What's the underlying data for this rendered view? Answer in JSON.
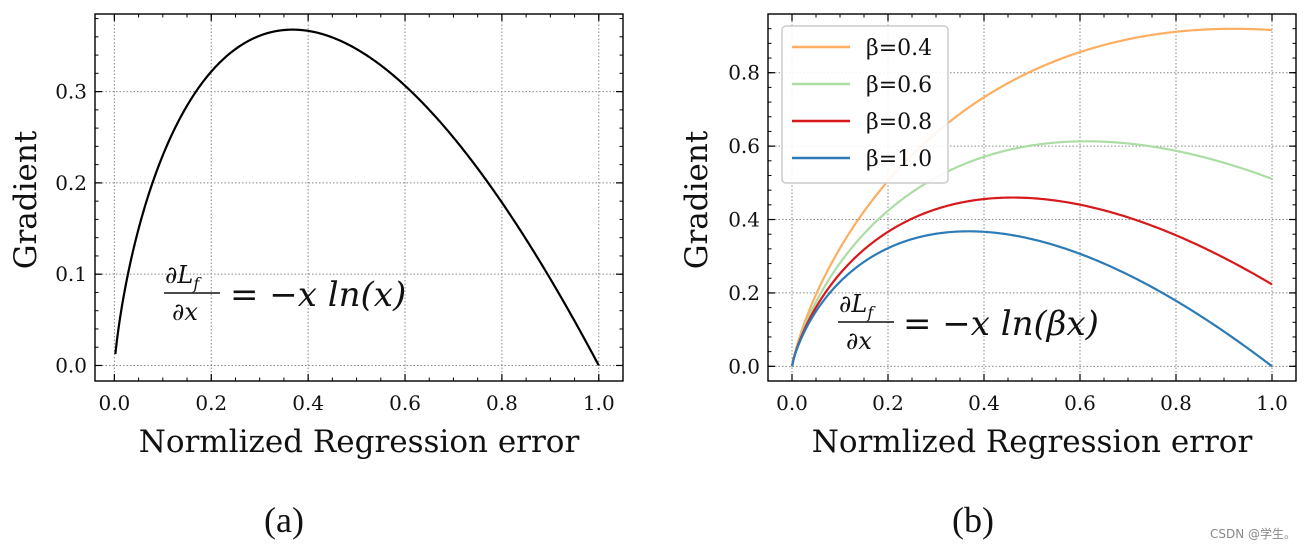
{
  "chart_data": [
    {
      "id": "a",
      "type": "line",
      "panel_label": "(a)",
      "xlabel": "Normlized Regression error",
      "ylabel": "Gradient",
      "xlim": [
        -0.04,
        1.05
      ],
      "ylim": [
        -0.017,
        0.385
      ],
      "xticks": [
        0.0,
        0.2,
        0.4,
        0.6,
        0.8,
        1.0
      ],
      "xtick_labels": [
        "0.0",
        "0.2",
        "0.4",
        "0.6",
        "0.8",
        "1.0"
      ],
      "yticks": [
        0.0,
        0.1,
        0.2,
        0.3
      ],
      "ytick_labels": [
        "0.0",
        "0.1",
        "0.2",
        "0.3"
      ],
      "grid": true,
      "series": [
        {
          "name": "-x ln(x)",
          "color": "#000000",
          "beta": 1.0,
          "x": [
            0.002,
            0.01,
            0.05,
            0.1,
            0.15,
            0.2,
            0.25,
            0.3,
            0.35,
            0.37,
            0.4,
            0.45,
            0.5,
            0.55,
            0.6,
            0.65,
            0.7,
            0.75,
            0.8,
            0.85,
            0.9,
            0.95,
            1.0
          ],
          "values": [
            0.012,
            0.046,
            0.15,
            0.23,
            0.285,
            0.322,
            0.347,
            0.361,
            0.367,
            0.368,
            0.367,
            0.359,
            0.347,
            0.329,
            0.306,
            0.28,
            0.25,
            0.216,
            0.179,
            0.138,
            0.095,
            0.049,
            0.0
          ]
        }
      ],
      "equation": {
        "lhs_num": "∂L",
        "lhs_sub": "f",
        "lhs_den": "∂x",
        "rhs": "= −x ln(x)"
      }
    },
    {
      "id": "b",
      "type": "line",
      "panel_label": "(b)",
      "xlabel": "Normlized Regression error",
      "ylabel": "Gradient",
      "xlim": [
        -0.05,
        1.05
      ],
      "ylim": [
        -0.04,
        0.96
      ],
      "xticks": [
        0.0,
        0.2,
        0.4,
        0.6,
        0.8,
        1.0
      ],
      "xtick_labels": [
        "0.0",
        "0.2",
        "0.4",
        "0.6",
        "0.8",
        "1.0"
      ],
      "yticks": [
        0.0,
        0.2,
        0.4,
        0.6,
        0.8
      ],
      "ytick_labels": [
        "0.0",
        "0.2",
        "0.4",
        "0.6",
        "0.8"
      ],
      "grid": true,
      "legend_position": "top-left",
      "series": [
        {
          "name": "β=0.4",
          "color": "#fdae61",
          "beta": 0.4,
          "x": [
            0.0,
            0.1,
            0.2,
            0.3,
            0.4,
            0.5,
            0.6,
            0.7,
            0.8,
            0.9,
            1.0
          ],
          "values": [
            0.0,
            0.322,
            0.506,
            0.633,
            0.729,
            0.802,
            0.858,
            0.894,
            0.914,
            0.92,
            0.916
          ]
        },
        {
          "name": "β=0.6",
          "color": "#abdda4",
          "beta": 0.6,
          "x": [
            0.0,
            0.1,
            0.2,
            0.3,
            0.4,
            0.5,
            0.6,
            0.7,
            0.8,
            0.9,
            1.0
          ],
          "values": [
            0.0,
            0.281,
            0.425,
            0.512,
            0.566,
            0.597,
            0.612,
            0.612,
            0.601,
            0.581,
            0.511
          ]
        },
        {
          "name": "β=0.8",
          "color": "#d7191c",
          "beta": 0.8,
          "x": [
            0.0,
            0.1,
            0.2,
            0.3,
            0.4,
            0.5,
            0.6,
            0.7,
            0.8,
            0.9,
            1.0
          ],
          "values": [
            0.0,
            0.253,
            0.367,
            0.426,
            0.453,
            0.458,
            0.445,
            0.42,
            0.384,
            0.34,
            0.223
          ]
        },
        {
          "name": "β=1.0",
          "color": "#2c7bb6",
          "beta": 1.0,
          "x": [
            0.0,
            0.1,
            0.2,
            0.3,
            0.4,
            0.5,
            0.6,
            0.7,
            0.8,
            0.9,
            1.0
          ],
          "values": [
            0.0,
            0.23,
            0.322,
            0.361,
            0.367,
            0.347,
            0.306,
            0.25,
            0.179,
            0.095,
            0.0
          ]
        }
      ],
      "equation": {
        "lhs_num": "∂L",
        "lhs_sub": "f",
        "lhs_den": "∂x",
        "rhs": "= −x ln(βx)"
      }
    }
  ],
  "watermark": "CSDN @学生。"
}
